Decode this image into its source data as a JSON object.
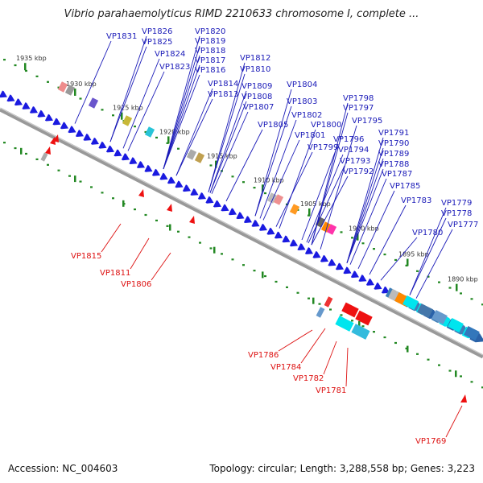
{
  "title": "Vibrio parahaemolyticus RIMD 2210633 chromosome I, complete ...",
  "accession": "Accession: NC_004603",
  "topology": "Topology: circular; Length: 3,288,558 bp; Genes: 3,223",
  "colors": {
    "axis": "#999999",
    "tick": "#228822",
    "gene": "#1a1ae0",
    "upper_label": "#1a1ab8",
    "lower_label": "#dd1111",
    "lower_gene": "#ee1111"
  },
  "scale_labels": [
    "1935 kbp",
    "1930 kbp",
    "1925 kbp",
    "1920 kbp",
    "1915 kbp",
    "1910 kbp",
    "1905 kbp",
    "1900 kbp",
    "1895 kbp",
    "1890 kbp"
  ],
  "upper_genes": [
    "VP1831",
    "VP1826",
    "VP1825",
    "VP1824",
    "VP1823",
    "VP1820",
    "VP1819",
    "VP1818",
    "VP1817",
    "VP1816",
    "VP1814",
    "VP1813",
    "VP1812",
    "VP1810",
    "VP1809",
    "VP1808",
    "VP1807",
    "VP1805",
    "VP1804",
    "VP1803",
    "VP1802",
    "VP1801",
    "VP1800",
    "VP1799",
    "VP1798",
    "VP1797",
    "VP1796",
    "VP1795",
    "VP1794",
    "VP1793",
    "VP1792",
    "VP1791",
    "VP1790",
    "VP1789",
    "VP1788",
    "VP1787",
    "VP1785",
    "VP1783",
    "VP1780",
    "VP1779",
    "VP1778",
    "VP1777"
  ],
  "lower_genes": [
    "VP1815",
    "VP1811",
    "VP1806",
    "VP1786",
    "VP1784",
    "VP1782",
    "VP1781",
    "VP1769"
  ]
}
